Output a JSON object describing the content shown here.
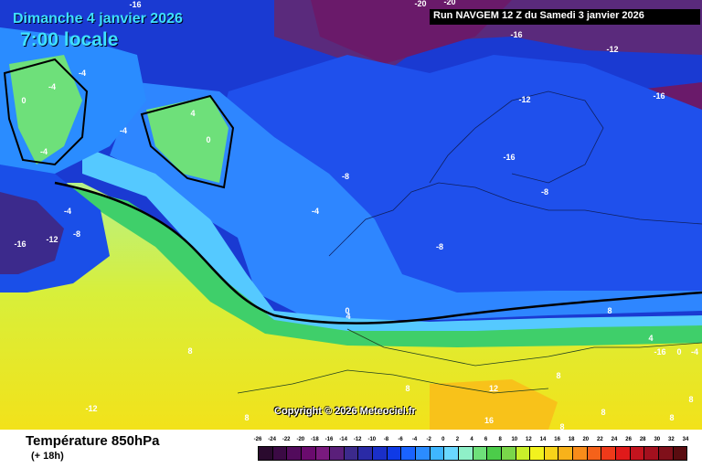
{
  "header": {
    "date": "Dimanche 4 janvier 2026",
    "time": "7:00 locale",
    "run": "Run NAVGEM 12 Z du Samedi 3 janvier 2026"
  },
  "footer": {
    "title": "Température 850hPa",
    "subtitle": "(+ 18h)",
    "copyright": "Copyright © 2026 Meteociel.fr"
  },
  "scale": {
    "ticks": [
      "-26",
      "-24",
      "-22",
      "-20",
      "-18",
      "-16",
      "-14",
      "-12",
      "-10",
      "-8",
      "-6",
      "-4",
      "-2",
      "0",
      "2",
      "4",
      "6",
      "8",
      "10",
      "12",
      "14",
      "16",
      "18",
      "20",
      "22",
      "24",
      "26",
      "28",
      "30",
      "32",
      "34"
    ],
    "colors": [
      "#2a0a2e",
      "#3b0a44",
      "#520b5c",
      "#6a0b6e",
      "#7a1a7e",
      "#5a1f7a",
      "#3c2a8c",
      "#2a2aa6",
      "#1a2fc8",
      "#0f3ae6",
      "#1a63ff",
      "#2b8cff",
      "#3fb6ff",
      "#6ad8ff",
      "#8ff0c8",
      "#6ee07a",
      "#4ccc4a",
      "#7ad64a",
      "#c8ef2a",
      "#f2f21e",
      "#f8d41a",
      "#f8b21a",
      "#f88c1a",
      "#f5621a",
      "#ee3a1a",
      "#e01a1a",
      "#c4141e",
      "#a4101e",
      "#80101a",
      "#5a0c10"
    ]
  },
  "isotherm_labels": [
    "-16",
    "-20",
    "-20",
    "-16",
    "-12",
    "-12",
    "-16",
    "-4",
    "-4",
    "4",
    "0",
    "-4",
    "-4",
    "-16",
    "0",
    "-4",
    "-8",
    "-8",
    "-16",
    "-16",
    "-12",
    "-8",
    "-4",
    "-8",
    "0",
    "4",
    "8",
    "8",
    "8",
    "8",
    "4",
    "0",
    "-4",
    "8",
    "-12",
    "8",
    "12",
    "16",
    "8",
    "8",
    "8"
  ]
}
